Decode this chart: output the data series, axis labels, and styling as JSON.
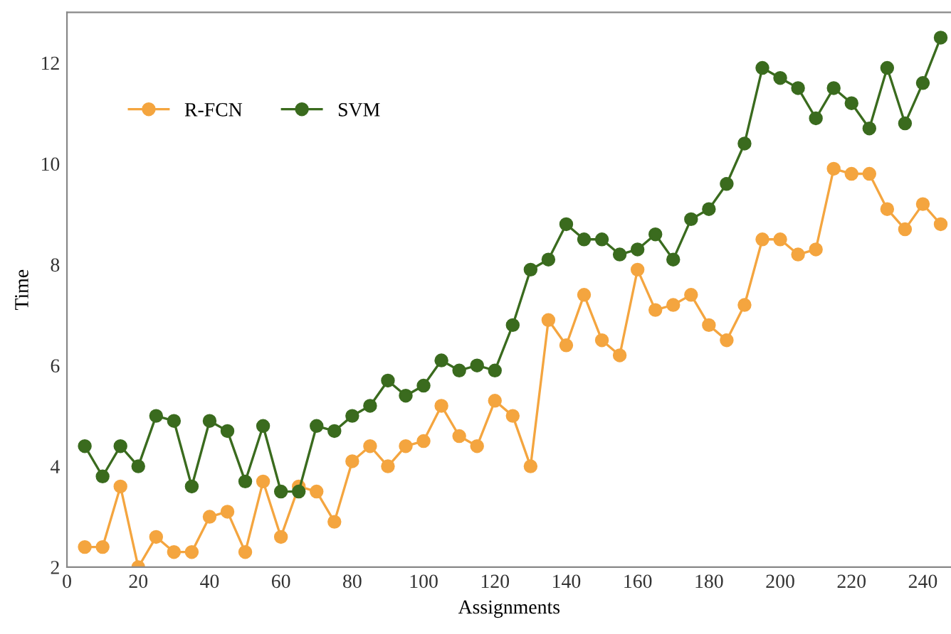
{
  "chart_data": {
    "type": "line",
    "xlabel": "Assignments",
    "ylabel": "Time",
    "x": [
      5,
      10,
      15,
      20,
      25,
      30,
      35,
      40,
      45,
      50,
      55,
      60,
      65,
      70,
      75,
      80,
      85,
      90,
      95,
      100,
      105,
      110,
      115,
      120,
      125,
      130,
      135,
      140,
      145,
      150,
      155,
      160,
      165,
      170,
      175,
      180,
      185,
      190,
      195,
      200,
      205,
      210,
      215,
      220,
      225,
      230,
      235,
      240,
      245
    ],
    "series": [
      {
        "name": "R-FCN",
        "color": "#f4a53f",
        "values": [
          2.4,
          2.4,
          3.6,
          2.0,
          2.6,
          2.3,
          2.3,
          3.0,
          3.1,
          2.3,
          3.7,
          2.6,
          3.6,
          3.5,
          2.9,
          4.1,
          4.4,
          4.0,
          4.4,
          4.5,
          5.2,
          4.6,
          4.4,
          5.3,
          5.0,
          4.0,
          6.9,
          6.4,
          7.4,
          6.5,
          6.2,
          7.9,
          7.1,
          7.2,
          7.4,
          6.8,
          6.5,
          7.2,
          8.5,
          8.5,
          8.2,
          8.3,
          9.9,
          9.8,
          9.8,
          9.1,
          8.7,
          9.2,
          8.8
        ]
      },
      {
        "name": "SVM",
        "color": "#3a6b1e",
        "values": [
          4.4,
          3.8,
          4.4,
          4.0,
          5.0,
          4.9,
          3.6,
          4.9,
          4.7,
          3.7,
          4.8,
          3.5,
          3.5,
          4.8,
          4.7,
          5.0,
          5.2,
          5.7,
          5.4,
          5.6,
          6.1,
          5.9,
          6.0,
          5.9,
          6.8,
          7.9,
          8.1,
          8.8,
          8.5,
          8.5,
          8.2,
          8.3,
          8.6,
          8.1,
          8.9,
          9.1,
          9.6,
          10.4,
          11.9,
          11.7,
          11.5,
          10.9,
          11.5,
          11.2,
          10.7,
          11.9,
          10.8,
          11.6,
          12.5
        ]
      }
    ],
    "xlim": [
      0,
      248
    ],
    "ylim": [
      2,
      13
    ],
    "xticks": [
      0,
      20,
      40,
      60,
      80,
      100,
      120,
      140,
      160,
      180,
      200,
      220,
      240
    ],
    "yticks": [
      2,
      4,
      6,
      8,
      10,
      12
    ],
    "grid": false,
    "legend": "top left",
    "marker": "circle",
    "line_style": "solid"
  }
}
